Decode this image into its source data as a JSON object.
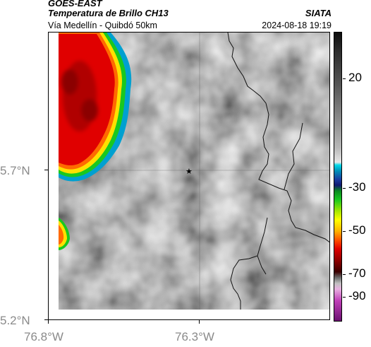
{
  "header": {
    "satellite": "GOES-EAST",
    "product": "Temperatura de Brillo CH13",
    "region": "Vía Medellín - Quibdó 50km",
    "agency": "SIATA",
    "timestamp": "2024-08-18 19:19"
  },
  "axes": {
    "lat_labels": [
      "5.7°N",
      "5.2°N"
    ],
    "lon_labels": [
      "76.8°W",
      "76.3°W"
    ]
  },
  "colorbar": {
    "labels": [
      "20",
      "-30",
      "-50",
      "-70",
      "-90"
    ]
  },
  "map": {
    "marker": "star-icon",
    "cloud_colors": {
      "core": "#8b0000",
      "cold": "#e00000",
      "edge": "#ff6a00",
      "rim": "#ffe000",
      "outer": "#19c81f",
      "halo": "#00a0d0"
    }
  }
}
